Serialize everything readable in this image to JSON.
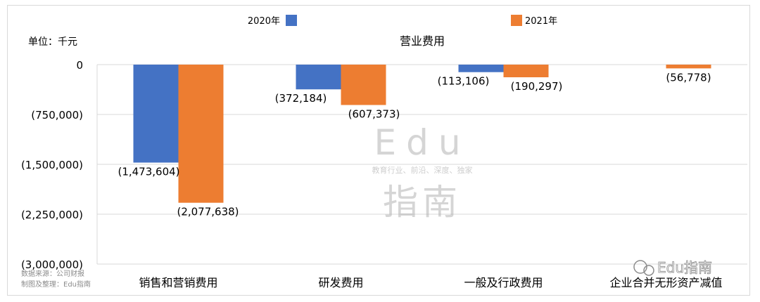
{
  "chart_data": {
    "type": "bar",
    "title": "营业费用",
    "unit_label": "单位：千元",
    "categories": [
      "销售和营销费用",
      "研发费用",
      "一般及行政费用",
      "企业合并无形资产减值"
    ],
    "series": [
      {
        "name": "2020年",
        "color": "#4472c4",
        "values": [
          -1473604,
          -372184,
          -113106,
          null
        ],
        "labels": [
          "(1,473,604)",
          "(372,184)",
          "(113,106)",
          ""
        ]
      },
      {
        "name": "2021年",
        "color": "#ed7d31",
        "values": [
          -2077638,
          -607373,
          -190297,
          -56778
        ],
        "labels": [
          "(2,077,638)",
          "(607,373)",
          "(190,297)",
          "(56,778)"
        ]
      }
    ],
    "ylim": [
      -3000000,
      0
    ],
    "yticks": [
      0,
      -750000,
      -1500000,
      -2250000,
      -3000000
    ],
    "ytick_labels": [
      "0",
      "(750,000)",
      "(1,500,000)",
      "(2,250,000)",
      "(3,000,000)"
    ],
    "grid": true,
    "legend_position": "top"
  },
  "source_note": [
    "数据来源：公司财报",
    "制图及整理：Edu指南"
  ],
  "watermark": {
    "latin": "Edu",
    "tagline": "教育行业、前沿、深度、独家",
    "cn": "指南",
    "corner": "Edu指南"
  }
}
